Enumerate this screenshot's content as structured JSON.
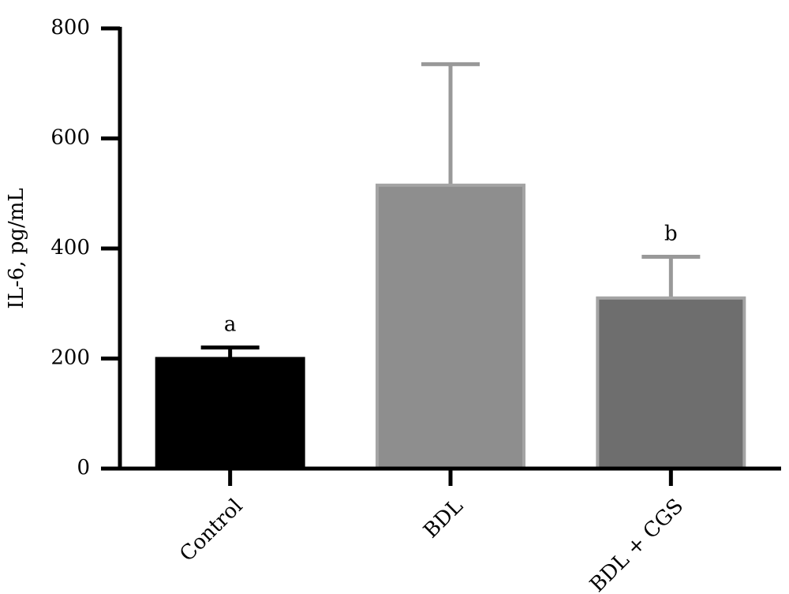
{
  "chart_data": {
    "type": "bar",
    "y_label": "IL-6, pg/mL",
    "categories": [
      "Control",
      "BDL",
      "BDL + CGS"
    ],
    "values": [
      200,
      515,
      310
    ],
    "errors": [
      20,
      220,
      75
    ],
    "bar_labels": [
      "a",
      null,
      "b"
    ],
    "colors": [
      "#000000",
      "#8e8e8e",
      "#6e6e6e"
    ],
    "ylim": [
      0,
      800
    ],
    "yticks": [
      0,
      200,
      400,
      600,
      800
    ],
    "grid": false
  }
}
